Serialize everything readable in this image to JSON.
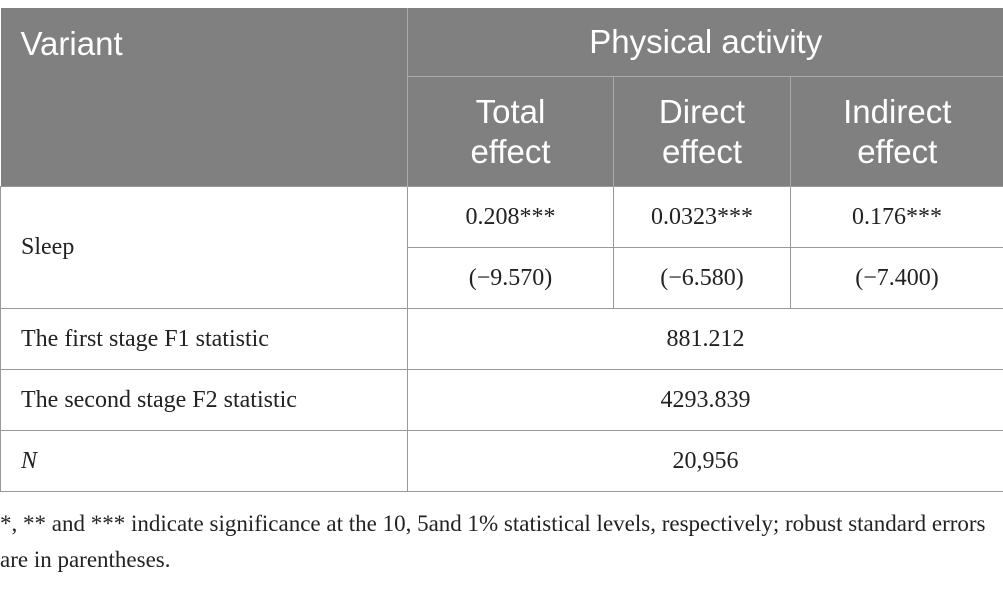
{
  "table": {
    "header": {
      "variant": "Variant",
      "group": "Physical activity",
      "columns": [
        "Total effect",
        "Direct effect",
        "Indirect effect"
      ]
    },
    "sleep": {
      "label": "Sleep",
      "coefficients": [
        "0.208***",
        "0.0323***",
        "0.176***"
      ],
      "t_values": [
        "(−9.570)",
        "(−6.580)",
        "(−7.400)"
      ]
    },
    "rows": [
      {
        "label": "The first stage F1 statistic",
        "value": "881.212"
      },
      {
        "label": "The second stage F2 statistic",
        "value": "4293.839"
      },
      {
        "label": "N",
        "value": "20,956"
      }
    ]
  },
  "footnote": "*, ** and *** indicate significance at the 10, 5and 1% statistical levels, respectively; robust standard errors are in parentheses."
}
